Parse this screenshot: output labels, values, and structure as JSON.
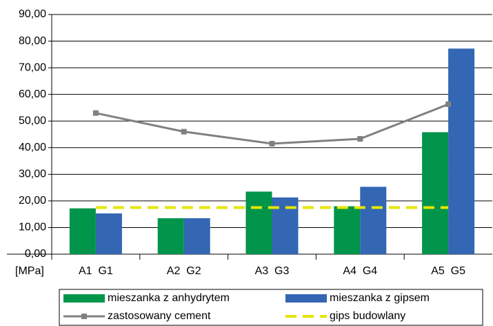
{
  "chart_data": {
    "type": "bar",
    "y_unit": "[MPa]",
    "categories": [
      "A1  G1",
      "A2  G2",
      "A3  G3",
      "A4  G4",
      "A5  G5"
    ],
    "ylim": [
      0,
      90
    ],
    "yticks": [
      {
        "value": 0,
        "label": "0,00"
      },
      {
        "value": 10,
        "label": "10,00"
      },
      {
        "value": 20,
        "label": "20,00"
      },
      {
        "value": 30,
        "label": "30,00"
      },
      {
        "value": 40,
        "label": "40,00"
      },
      {
        "value": 50,
        "label": "50,00"
      },
      {
        "value": 60,
        "label": "60,00"
      },
      {
        "value": 70,
        "label": "70,00"
      },
      {
        "value": 80,
        "label": "80,00"
      },
      {
        "value": 90,
        "label": "90,00"
      }
    ],
    "grid": true,
    "series": [
      {
        "name": "mieszanka z anhydrytem",
        "type": "bar",
        "color": "#00954a",
        "values": [
          17.2,
          13.5,
          23.5,
          18,
          45.8
        ]
      },
      {
        "name": "mieszanka z gipsem",
        "type": "bar",
        "color": "#3366b3",
        "values": [
          15.3,
          13.5,
          21.3,
          25.3,
          77.2
        ]
      },
      {
        "name": "zastosowany cement",
        "type": "line",
        "marker": "square",
        "color": "#808080",
        "values": [
          53.0,
          46.0,
          41.5,
          43.3,
          56.3
        ]
      },
      {
        "name": "gips budowlany",
        "type": "line",
        "dashed": true,
        "color": "#e6e600",
        "values": [
          17.5,
          17.5,
          17.5,
          17.5,
          17.5
        ]
      }
    ]
  }
}
